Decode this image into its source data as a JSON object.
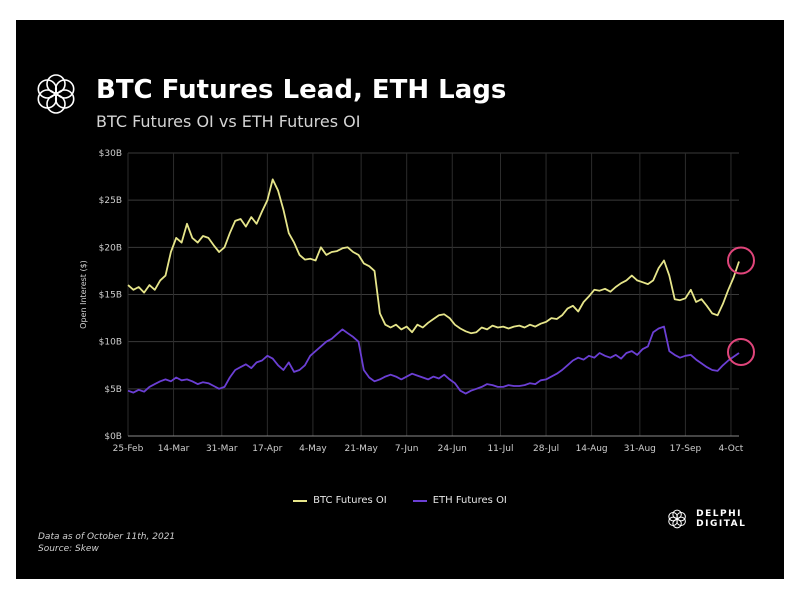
{
  "header": {
    "title": "BTC Futures Lead, ETH Lags",
    "subtitle": "BTC Futures OI vs ETH Futures OI"
  },
  "footer": {
    "note_line1": "Data as of October 11th, 2021",
    "note_line2": "Source: Skew",
    "brand": "DELPHI DIGITAL",
    "logo_icon": "delphi-flower-logo"
  },
  "chart_data": {
    "type": "line",
    "title": "BTC Futures Lead, ETH Lags",
    "subtitle": "BTC Futures OI vs ETH Futures OI",
    "xlabel": "",
    "ylabel": "Open Interest ($)",
    "ylim": [
      0,
      30
    ],
    "yticks": [
      0,
      5,
      10,
      15,
      20,
      25,
      30
    ],
    "ytick_labels": [
      "$0B",
      "$5B",
      "$10B",
      "$15B",
      "$20B",
      "$25B",
      "$30B"
    ],
    "xlim": [
      0,
      228
    ],
    "xticks": [
      0,
      17,
      35,
      52,
      69,
      87,
      104,
      121,
      139,
      156,
      173,
      191,
      208,
      225
    ],
    "xtick_labels": [
      "25-Feb",
      "14-Mar",
      "31-Mar",
      "17-Apr",
      "4-May",
      "21-May",
      "7-Jun",
      "24-Jun",
      "11-Jul",
      "28-Jul",
      "14-Aug",
      "31-Aug",
      "17-Sep",
      "4-Oct"
    ],
    "grid": true,
    "legend_position": "bottom-center",
    "background": "#000000",
    "series": [
      {
        "name": "BTC Futures OI",
        "color": "#e6e58a",
        "x": [
          0,
          2,
          4,
          6,
          8,
          10,
          12,
          14,
          16,
          18,
          20,
          22,
          24,
          26,
          28,
          30,
          32,
          34,
          36,
          38,
          40,
          42,
          44,
          46,
          48,
          50,
          52,
          54,
          56,
          58,
          60,
          62,
          64,
          66,
          68,
          70,
          72,
          74,
          76,
          78,
          80,
          82,
          84,
          86,
          88,
          90,
          92,
          94,
          96,
          98,
          100,
          102,
          104,
          106,
          108,
          110,
          112,
          114,
          116,
          118,
          120,
          122,
          124,
          126,
          128,
          130,
          132,
          134,
          136,
          138,
          140,
          142,
          144,
          146,
          148,
          150,
          152,
          154,
          156,
          158,
          160,
          162,
          164,
          166,
          168,
          170,
          172,
          174,
          176,
          178,
          180,
          182,
          184,
          186,
          188,
          190,
          192,
          194,
          196,
          198,
          200,
          202,
          204,
          206,
          208,
          210,
          212,
          214,
          216,
          218,
          220,
          222,
          224,
          226,
          228
        ],
        "values": [
          16,
          15.5,
          15.8,
          15.2,
          16,
          15.5,
          16.5,
          17,
          19.5,
          21,
          20.5,
          22.5,
          21,
          20.5,
          21.2,
          21,
          20.2,
          19.5,
          20,
          21.5,
          22.8,
          23,
          22.2,
          23.2,
          22.5,
          23.8,
          25,
          27.2,
          26,
          24,
          21.5,
          20.5,
          19.2,
          18.7,
          18.8,
          18.6,
          20,
          19.2,
          19.5,
          19.6,
          19.9,
          20,
          19.5,
          19.2,
          18.3,
          18,
          17.5,
          13,
          11.8,
          11.5,
          11.8,
          11.3,
          11.6,
          11,
          11.8,
          11.5,
          12,
          12.4,
          12.8,
          12.9,
          12.5,
          11.8,
          11.4,
          11.1,
          10.9,
          11,
          11.5,
          11.3,
          11.7,
          11.5,
          11.6,
          11.4,
          11.6,
          11.7,
          11.5,
          11.8,
          11.6,
          11.9,
          12.1,
          12.5,
          12.4,
          12.8,
          13.5,
          13.8,
          13.2,
          14.2,
          14.8,
          15.5,
          15.4,
          15.6,
          15.3,
          15.8,
          16.2,
          16.5,
          17,
          16.5,
          16.3,
          16.1,
          16.5,
          17.8,
          18.6,
          17,
          14.5,
          14.4,
          14.6,
          15.5,
          14.2,
          14.5,
          13.8,
          13,
          12.8,
          14,
          15.5,
          16.8,
          18.5
        ],
        "annotation": "circled final value"
      },
      {
        "name": "ETH Futures OI",
        "color": "#6b3fd4",
        "x": [
          0,
          2,
          4,
          6,
          8,
          10,
          12,
          14,
          16,
          18,
          20,
          22,
          24,
          26,
          28,
          30,
          32,
          34,
          36,
          38,
          40,
          42,
          44,
          46,
          48,
          50,
          52,
          54,
          56,
          58,
          60,
          62,
          64,
          66,
          68,
          70,
          72,
          74,
          76,
          78,
          80,
          82,
          84,
          86,
          88,
          90,
          92,
          94,
          96,
          98,
          100,
          102,
          104,
          106,
          108,
          110,
          112,
          114,
          116,
          118,
          120,
          122,
          124,
          126,
          128,
          130,
          132,
          134,
          136,
          138,
          140,
          142,
          144,
          146,
          148,
          150,
          152,
          154,
          156,
          158,
          160,
          162,
          164,
          166,
          168,
          170,
          172,
          174,
          176,
          178,
          180,
          182,
          184,
          186,
          188,
          190,
          192,
          194,
          196,
          198,
          200,
          202,
          204,
          206,
          208,
          210,
          212,
          214,
          216,
          218,
          220,
          222,
          224,
          226,
          228
        ],
        "values": [
          4.8,
          4.6,
          4.9,
          4.7,
          5.2,
          5.5,
          5.8,
          6,
          5.8,
          6.2,
          5.9,
          6,
          5.8,
          5.5,
          5.7,
          5.6,
          5.3,
          5,
          5.2,
          6.2,
          7,
          7.3,
          7.6,
          7.2,
          7.8,
          8,
          8.5,
          8.2,
          7.5,
          7,
          7.8,
          6.8,
          7,
          7.5,
          8.5,
          9,
          9.5,
          10,
          10.3,
          10.8,
          11.3,
          10.9,
          10.5,
          10,
          7,
          6.2,
          5.8,
          6,
          6.3,
          6.5,
          6.3,
          6,
          6.3,
          6.6,
          6.4,
          6.2,
          6,
          6.3,
          6.1,
          6.5,
          6,
          5.6,
          4.8,
          4.5,
          4.8,
          5,
          5.2,
          5.5,
          5.4,
          5.2,
          5.2,
          5.4,
          5.3,
          5.3,
          5.4,
          5.6,
          5.5,
          5.9,
          6,
          6.3,
          6.6,
          7,
          7.5,
          8,
          8.3,
          8.1,
          8.5,
          8.3,
          8.8,
          8.5,
          8.3,
          8.6,
          8.2,
          8.8,
          9,
          8.6,
          9.2,
          9.5,
          11,
          11.4,
          11.6,
          9,
          8.6,
          8.3,
          8.5,
          8.6,
          8.1,
          7.7,
          7.3,
          7,
          6.9,
          7.5,
          8,
          8.4,
          8.8
        ],
        "annotation": "circled final value"
      }
    ],
    "highlight_color": "#e0457b"
  }
}
